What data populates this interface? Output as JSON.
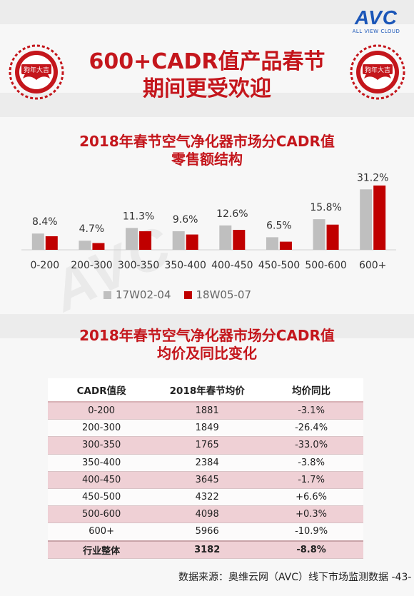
{
  "brand": {
    "logo_text": "AVC",
    "logo_sub": "ALL VIEW CLOUD",
    "color": "#1b56b8"
  },
  "decor": {
    "seal_text": "狗年大吉",
    "accent": "#c4161c",
    "watermark": "AVC"
  },
  "title": {
    "line1": "600+CADR值产品春节",
    "line2": "期间更受欢迎"
  },
  "chart_title": {
    "line1": "2018年春节空气净化器市场分CADR值",
    "line2": "零售额结构"
  },
  "chart_data": {
    "type": "bar",
    "categories": [
      "0-200",
      "200-300",
      "300-350",
      "350-400",
      "400-450",
      "450-500",
      "500-600",
      "600+"
    ],
    "series": [
      {
        "name": "17W02-04",
        "color": "#bfbfbf",
        "values": [
          8.4,
          4.7,
          11.3,
          9.6,
          12.6,
          6.5,
          15.8,
          31.2
        ]
      },
      {
        "name": "18W05-07",
        "color": "#c00000",
        "values": [
          7.0,
          3.5,
          9.6,
          7.9,
          10.3,
          4.2,
          13.0,
          33.2
        ]
      }
    ],
    "data_labels": [
      "8.4%",
      "4.7%",
      "11.3%",
      "9.6%",
      "12.6%",
      "6.5%",
      "15.8%",
      "31.2%"
    ],
    "ylim": [
      0,
      35
    ],
    "legend_position": "bottom"
  },
  "table_title": {
    "line1": "2018年春节空气净化器市场分CADR值",
    "line2": "均价及同比变化"
  },
  "table": {
    "headers": [
      "CADR值段",
      "2018年春节均价",
      "均价同比"
    ],
    "rows": [
      [
        "0-200",
        "1881",
        "-3.1%"
      ],
      [
        "200-300",
        "1849",
        "-26.4%"
      ],
      [
        "300-350",
        "1765",
        "-33.0%"
      ],
      [
        "350-400",
        "2384",
        "-3.8%"
      ],
      [
        "400-450",
        "3645",
        "-1.7%"
      ],
      [
        "450-500",
        "4322",
        "+6.6%"
      ],
      [
        "500-600",
        "4098",
        "+0.3%"
      ],
      [
        "600+",
        "5966",
        "-10.9%"
      ]
    ],
    "total": [
      "行业整体",
      "3182",
      "-8.8%"
    ]
  },
  "footer": {
    "source": "数据来源：奥维云网（AVC）线下市场监测数据",
    "page": "-43-"
  }
}
